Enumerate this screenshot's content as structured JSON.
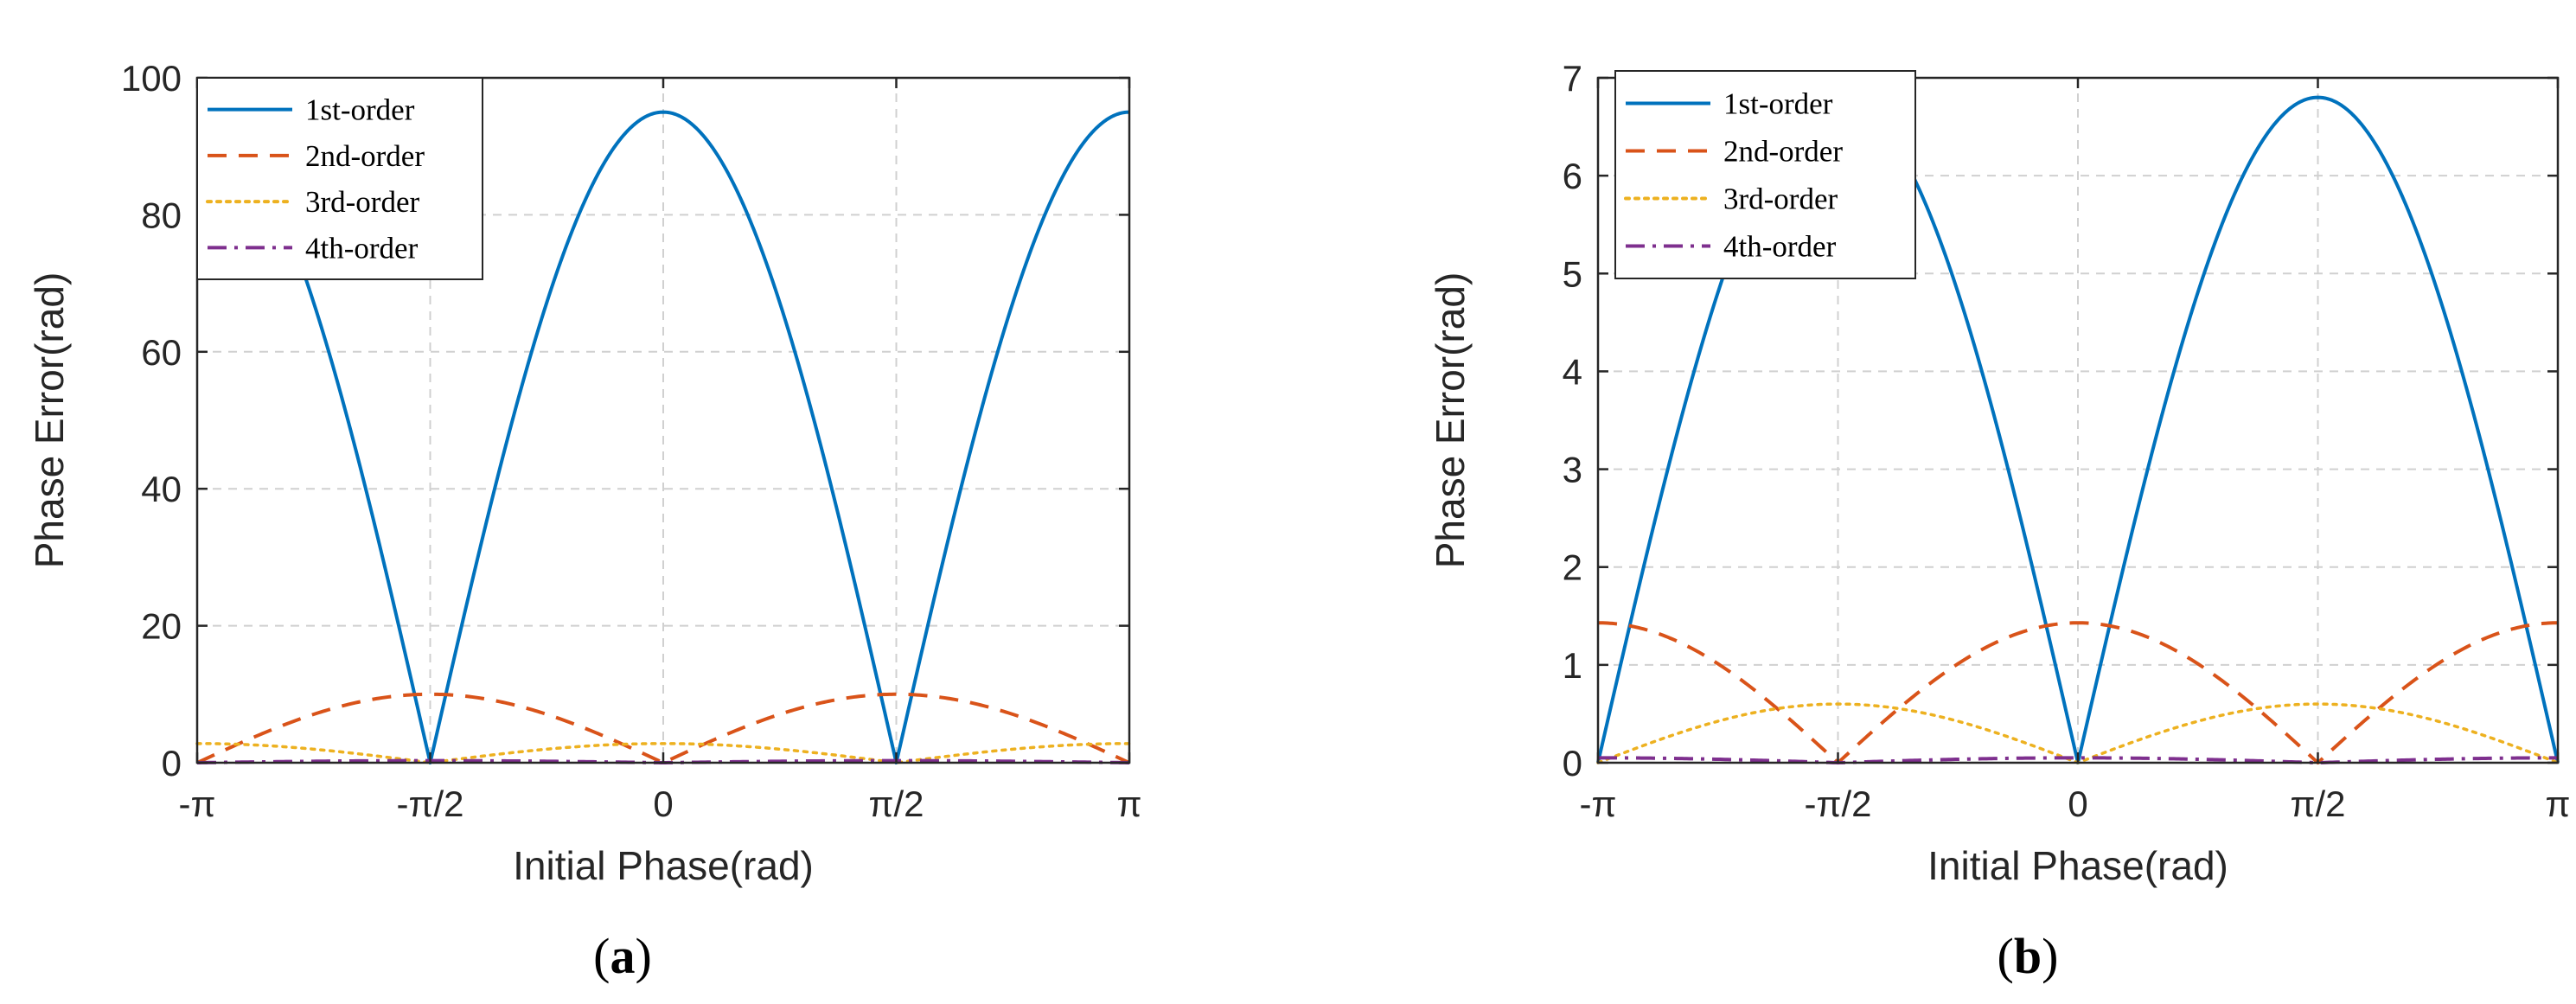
{
  "chart_data": [
    {
      "id": "a",
      "type": "line",
      "caption_open": "(",
      "caption_letter": "a",
      "caption_close": ")",
      "xlabel": "Initial Phase(rad)",
      "ylabel": "Phase Error(rad)",
      "xlim": [
        -3.14159,
        3.14159
      ],
      "ylim": [
        0,
        100
      ],
      "xticks": [
        -3.14159,
        -1.5708,
        0,
        1.5708,
        3.14159
      ],
      "xtick_labels": [
        "-π",
        "-π/2",
        "0",
        "π/2",
        "π"
      ],
      "yticks": [
        0,
        20,
        40,
        60,
        80,
        100
      ],
      "ytick_labels": [
        "0",
        "20",
        "40",
        "60",
        "80",
        "100"
      ],
      "grid": true,
      "legend_position": "top-left",
      "series": [
        {
          "name": "1st-order",
          "color": "#0072BD",
          "style": "solid",
          "amplitude": 95,
          "shape": "abs-cos"
        },
        {
          "name": "2nd-order",
          "color": "#D95319",
          "style": "dashed",
          "amplitude": 10,
          "shape": "abs-sin"
        },
        {
          "name": "3rd-order",
          "color": "#EDB120",
          "style": "dotted",
          "amplitude": 2.8,
          "shape": "abs-cos"
        },
        {
          "name": "4th-order",
          "color": "#7E2F8E",
          "style": "dashdot",
          "amplitude": 0.3,
          "shape": "abs-sin"
        }
      ]
    },
    {
      "id": "b",
      "type": "line",
      "caption_open": "(",
      "caption_letter": "b",
      "caption_close": ")",
      "xlabel": "Initial Phase(rad)",
      "ylabel": "Phase Error(rad)",
      "xlim": [
        -3.14159,
        3.14159
      ],
      "ylim": [
        0,
        7
      ],
      "xticks": [
        -3.14159,
        -1.5708,
        0,
        1.5708,
        3.14159
      ],
      "xtick_labels": [
        "-π",
        "-π/2",
        "0",
        "π/2",
        "π"
      ],
      "yticks": [
        0,
        1,
        2,
        3,
        4,
        5,
        6,
        7
      ],
      "ytick_labels": [
        "0",
        "1",
        "2",
        "3",
        "4",
        "5",
        "6",
        "7"
      ],
      "grid": true,
      "legend_position": "top-left",
      "series": [
        {
          "name": "1st-order",
          "color": "#0072BD",
          "style": "solid",
          "amplitude": 6.8,
          "shape": "abs-sin"
        },
        {
          "name": "2nd-order",
          "color": "#D95319",
          "style": "dashed",
          "amplitude": 1.43,
          "shape": "abs-cos"
        },
        {
          "name": "3rd-order",
          "color": "#EDB120",
          "style": "dotted",
          "amplitude": 0.6,
          "shape": "abs-sin"
        },
        {
          "name": "4th-order",
          "color": "#7E2F8E",
          "style": "dashdot",
          "amplitude": 0.05,
          "shape": "abs-cos"
        }
      ]
    }
  ]
}
